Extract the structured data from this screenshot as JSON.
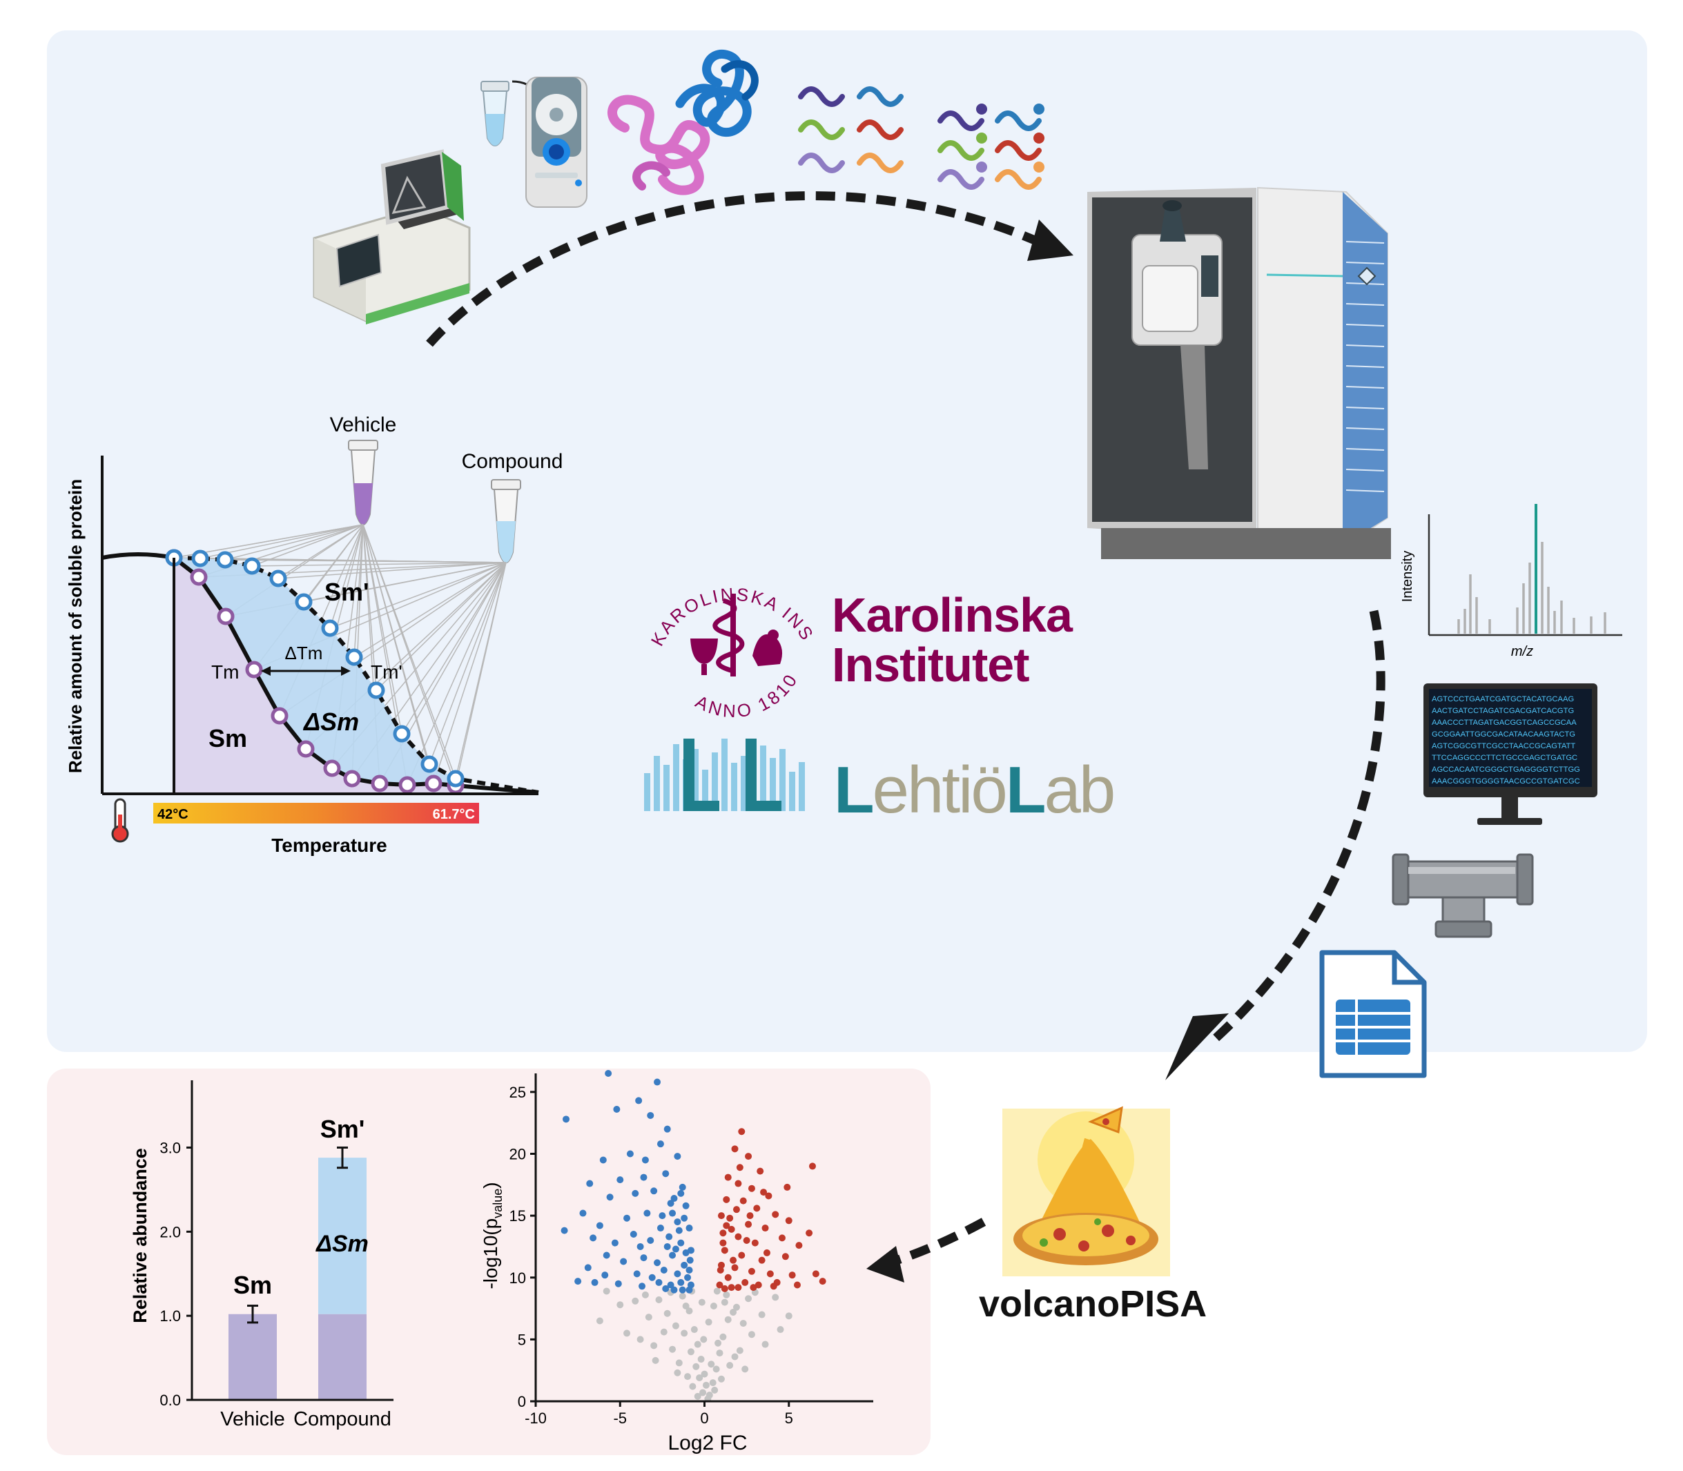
{
  "melt_curve": {
    "vehicle_label": "Vehicle",
    "compound_label": "Compound",
    "ylabel": "Relative amount of soluble protein",
    "xlabel": "Temperature",
    "temp_min_label": "42°C",
    "temp_max_label": "61.7°C",
    "sm_label": "Sm",
    "sm_prime_label": "Sm'",
    "delta_sm_label": "ΔSm",
    "tm_label": "Tm",
    "tm_prime_label": "Tm'",
    "delta_tm_label": "ΔTm",
    "colors": {
      "vehicle": "#8e5aa0",
      "compound": "#3a86c8",
      "vehicle_fill": "#ddd6ee",
      "compound_fill": "#b9d8f2"
    }
  },
  "ms_spectrum": {
    "ylabel": "Intensity",
    "xlabel": "m/z"
  },
  "monitor": {
    "lines": [
      "AGTCCCTGAATCGATGCTACATGCAAG",
      "AACTGATCCTAGATCGACGATCACGTG",
      "AAACCCTTAGATGACGGTCAGCCGCAA",
      "GCGGAATTGGCGACATAACAAGTACTG",
      "AGTCGGCGTTCGCCTAACCGCAGTATT",
      "TTCCAGGCCCTTCTGCCGAGCTGATGC",
      "AGCCACAATCGGGCTGAGGGGTCTTGG",
      "AAACGGGTGGGGTAACGCCGTGATCGC"
    ]
  },
  "ki_logo": {
    "name_line1": "Karolinska",
    "name_line2": "Institutet",
    "ring_text_top": "KAROLINSKA INSTITUTET",
    "ring_text_bottom": "ANNO 1810",
    "color": "#870052"
  },
  "lab_logo": {
    "first_letter": "L",
    "first_rest": "ehtiö",
    "second_letter": "L",
    "second_rest": "ab"
  },
  "tool": {
    "name": "volcanoPISA"
  },
  "chart_data": [
    {
      "type": "bar",
      "categories": [
        "Vehicle",
        "Compound"
      ],
      "series": [
        {
          "name": "Sm",
          "values": [
            1.02,
            1.02
          ]
        },
        {
          "name": "ΔSm",
          "values": [
            0,
            1.86
          ]
        }
      ],
      "totals": [
        1.02,
        2.88
      ],
      "errors": [
        0.1,
        0.12
      ],
      "bar_labels": [
        "Sm",
        "Sm'"
      ],
      "segment_label": "ΔSm",
      "ylabel": "Relative abundance",
      "xlabel": "",
      "ylim": [
        0,
        3.8
      ],
      "yticks": [
        "0.0",
        "1.0",
        "2.0",
        "3.0"
      ],
      "colors": {
        "base": "#b6aed6",
        "delta": "#b7d8f2"
      }
    },
    {
      "type": "scatter",
      "title": "",
      "xlabel": "Log2 FC",
      "ylabel": "-log10(p",
      "ylabel_subscript": "value",
      "ylabel_suffix": ")",
      "xlim": [
        -10,
        10
      ],
      "ylim": [
        0,
        26.5
      ],
      "xticks": [
        "-10",
        "-5",
        "0",
        "5"
      ],
      "yticks": [
        "0",
        "5",
        "10",
        "15",
        "20",
        "25"
      ],
      "colors": {
        "down": "#3a7cc2",
        "up": "#c0392b",
        "ns": "#c3c3c3"
      },
      "down_points": [
        [
          -5.7,
          26.5
        ],
        [
          -2.8,
          25.8
        ],
        [
          -8.2,
          22.8
        ],
        [
          -3.9,
          24.3
        ],
        [
          -5.2,
          23.6
        ],
        [
          -3.2,
          23.1
        ],
        [
          -2.2,
          22.0
        ],
        [
          -6.0,
          19.5
        ],
        [
          -4.4,
          20.0
        ],
        [
          -3.5,
          19.5
        ],
        [
          -2.6,
          20.8
        ],
        [
          -1.6,
          19.8
        ],
        [
          -6.8,
          17.6
        ],
        [
          -5.0,
          17.9
        ],
        [
          -3.6,
          18.1
        ],
        [
          -2.3,
          18.4
        ],
        [
          -1.3,
          17.3
        ],
        [
          -5.6,
          16.5
        ],
        [
          -4.1,
          16.8
        ],
        [
          -3.0,
          17.0
        ],
        [
          -1.8,
          16.4
        ],
        [
          -1.1,
          15.8
        ],
        [
          -7.2,
          15.2
        ],
        [
          -6.2,
          14.2
        ],
        [
          -4.6,
          14.8
        ],
        [
          -3.4,
          15.2
        ],
        [
          -2.5,
          15.0
        ],
        [
          -1.6,
          14.5
        ],
        [
          -0.9,
          14.0
        ],
        [
          -8.3,
          13.8
        ],
        [
          -6.6,
          13.2
        ],
        [
          -5.3,
          12.8
        ],
        [
          -4.2,
          13.5
        ],
        [
          -3.2,
          13.0
        ],
        [
          -2.1,
          13.3
        ],
        [
          -1.4,
          12.8
        ],
        [
          -0.8,
          12.2
        ],
        [
          -5.8,
          11.8
        ],
        [
          -4.8,
          11.3
        ],
        [
          -3.6,
          11.6
        ],
        [
          -2.8,
          11.2
        ],
        [
          -1.9,
          11.8
        ],
        [
          -1.2,
          11.0
        ],
        [
          -6.9,
          10.8
        ],
        [
          -5.9,
          10.2
        ],
        [
          -4.0,
          10.3
        ],
        [
          -3.1,
          10.0
        ],
        [
          -2.4,
          10.6
        ],
        [
          -1.6,
          10.3
        ],
        [
          -0.9,
          10.6
        ],
        [
          -7.5,
          9.7
        ],
        [
          -6.5,
          9.6
        ],
        [
          -5.1,
          9.5
        ],
        [
          -3.7,
          9.3
        ],
        [
          -2.7,
          9.6
        ],
        [
          -2.0,
          9.4
        ],
        [
          -1.4,
          9.6
        ],
        [
          -0.8,
          9.4
        ],
        [
          -1.1,
          12.0
        ],
        [
          -1.5,
          13.8
        ],
        [
          -2.2,
          12.5
        ],
        [
          -1.0,
          10.0
        ],
        [
          -0.9,
          9.0
        ],
        [
          -1.3,
          9.0
        ],
        [
          -1.8,
          9.0
        ],
        [
          -2.3,
          9.1
        ],
        [
          -1.7,
          12.3
        ],
        [
          -1.2,
          14.8
        ],
        [
          -2.0,
          16.0
        ],
        [
          -1.4,
          16.8
        ],
        [
          -2.6,
          14.0
        ],
        [
          -3.8,
          12.5
        ],
        [
          -0.85,
          11.4
        ],
        [
          -1.9,
          15.2
        ]
      ],
      "up_points": [
        [
          2.2,
          21.8
        ],
        [
          6.4,
          19.0
        ],
        [
          1.8,
          20.4
        ],
        [
          2.6,
          19.8
        ],
        [
          3.3,
          18.6
        ],
        [
          1.4,
          18.1
        ],
        [
          2.0,
          17.6
        ],
        [
          2.8,
          17.2
        ],
        [
          3.8,
          16.6
        ],
        [
          1.3,
          16.3
        ],
        [
          2.3,
          16.2
        ],
        [
          3.1,
          15.6
        ],
        [
          4.2,
          15.1
        ],
        [
          5.0,
          14.6
        ],
        [
          1.5,
          14.8
        ],
        [
          2.6,
          14.3
        ],
        [
          3.6,
          14.0
        ],
        [
          1.1,
          13.6
        ],
        [
          2.0,
          13.3
        ],
        [
          3.0,
          12.8
        ],
        [
          4.6,
          13.2
        ],
        [
          6.2,
          13.6
        ],
        [
          1.2,
          12.2
        ],
        [
          2.2,
          11.8
        ],
        [
          3.4,
          11.4
        ],
        [
          4.8,
          11.7
        ],
        [
          5.6,
          12.6
        ],
        [
          1.0,
          11.0
        ],
        [
          1.8,
          10.8
        ],
        [
          2.8,
          10.5
        ],
        [
          3.9,
          10.3
        ],
        [
          5.2,
          10.2
        ],
        [
          6.6,
          10.3
        ],
        [
          7.0,
          9.7
        ],
        [
          1.4,
          10.0
        ],
        [
          2.4,
          9.6
        ],
        [
          3.2,
          9.4
        ],
        [
          4.3,
          9.6
        ],
        [
          5.5,
          9.4
        ],
        [
          0.9,
          9.4
        ],
        [
          1.6,
          9.2
        ],
        [
          1.1,
          12.8
        ],
        [
          1.7,
          11.4
        ],
        [
          2.5,
          13.0
        ],
        [
          1.3,
          14.2
        ],
        [
          1.9,
          15.5
        ],
        [
          0.95,
          10.6
        ],
        [
          1.2,
          9.1
        ],
        [
          2.0,
          9.2
        ],
        [
          2.9,
          9.2
        ],
        [
          3.7,
          12.0
        ],
        [
          4.1,
          9.3
        ],
        [
          2.7,
          15.0
        ],
        [
          1.6,
          13.9
        ],
        [
          3.5,
          16.9
        ],
        [
          1.0,
          15.0
        ],
        [
          4.9,
          17.3
        ],
        [
          2.1,
          18.9
        ]
      ],
      "ns_points": [
        [
          -6.2,
          6.5
        ],
        [
          -5.0,
          7.8
        ],
        [
          -4.1,
          8.1
        ],
        [
          -3.3,
          6.8
        ],
        [
          -2.7,
          8.2
        ],
        [
          -2.2,
          7.1
        ],
        [
          -1.7,
          6.1
        ],
        [
          -1.3,
          8.5
        ],
        [
          -0.9,
          7.3
        ],
        [
          -0.6,
          5.8
        ],
        [
          -0.4,
          4.6
        ],
        [
          -0.2,
          3.4
        ],
        [
          0.0,
          2.2
        ],
        [
          0.1,
          1.3
        ],
        [
          -0.1,
          0.7
        ],
        [
          0.3,
          0.5
        ],
        [
          0.5,
          1.5
        ],
        [
          0.7,
          2.6
        ],
        [
          0.9,
          3.9
        ],
        [
          1.1,
          5.2
        ],
        [
          1.4,
          6.6
        ],
        [
          1.9,
          7.6
        ],
        [
          2.6,
          8.3
        ],
        [
          3.4,
          7.0
        ],
        [
          4.2,
          8.4
        ],
        [
          5.0,
          6.9
        ],
        [
          -4.6,
          5.5
        ],
        [
          -3.8,
          5.0
        ],
        [
          -3.0,
          4.5
        ],
        [
          -2.4,
          5.6
        ],
        [
          -1.9,
          4.2
        ],
        [
          -1.5,
          3.1
        ],
        [
          -1.0,
          2.0
        ],
        [
          -0.7,
          1.2
        ],
        [
          -0.4,
          0.4
        ],
        [
          0.2,
          0.2
        ],
        [
          0.6,
          0.9
        ],
        [
          1.0,
          1.8
        ],
        [
          1.5,
          2.9
        ],
        [
          2.1,
          4.1
        ],
        [
          2.8,
          5.4
        ],
        [
          3.6,
          4.6
        ],
        [
          4.5,
          5.8
        ],
        [
          -2.0,
          8.8
        ],
        [
          -1.2,
          5.5
        ],
        [
          -0.8,
          4.0
        ],
        [
          -0.5,
          2.8
        ],
        [
          -0.3,
          1.9
        ],
        [
          0.4,
          3.0
        ],
        [
          0.8,
          4.7
        ],
        [
          1.3,
          8.6
        ],
        [
          1.7,
          7.2
        ],
        [
          2.3,
          6.3
        ],
        [
          3.0,
          8.8
        ],
        [
          -3.5,
          8.6
        ],
        [
          -5.8,
          8.9
        ],
        [
          -2.9,
          3.3
        ],
        [
          -1.6,
          2.3
        ],
        [
          1.8,
          3.6
        ],
        [
          2.4,
          2.6
        ],
        [
          -0.05,
          5.0
        ],
        [
          0.25,
          6.4
        ],
        [
          -0.15,
          8.0
        ],
        [
          0.55,
          7.7
        ],
        [
          -1.1,
          7.7
        ],
        [
          1.2,
          8.0
        ],
        [
          -0.75,
          8.9
        ],
        [
          0.75,
          8.9
        ]
      ]
    }
  ]
}
